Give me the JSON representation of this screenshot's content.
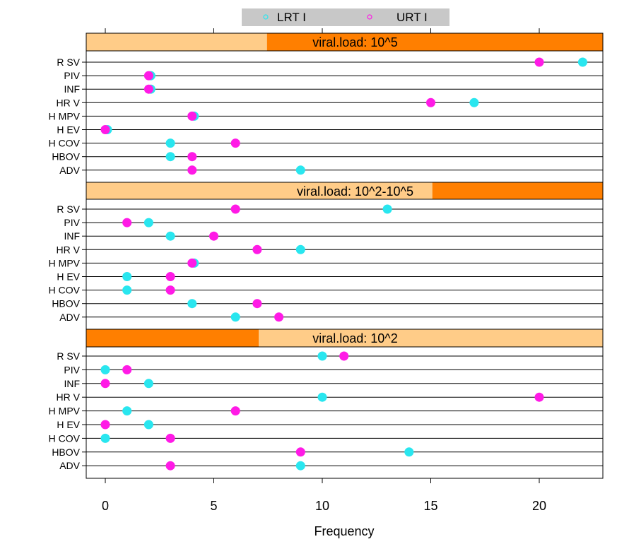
{
  "chart_data": {
    "type": "scatter",
    "title": "",
    "xlabel": "Frequency",
    "ylabel": "",
    "xlim": [
      -0.9,
      23
    ],
    "x_ticks": [
      0,
      5,
      10,
      15,
      20
    ],
    "grid": true,
    "legend_position": "top-center",
    "categories": [
      "RSV",
      "PIV",
      "INF",
      "HRV",
      "HMPV",
      "HEV",
      "HCOV",
      "HBOV",
      "ADV"
    ],
    "category_labels": [
      "R SV",
      "PIV",
      "INF",
      "HR V",
      "H MPV",
      "H EV",
      "H COV",
      "HBOV",
      "ADV"
    ],
    "series": [
      {
        "name": "LRTI",
        "legend_label": "LRT I",
        "color": "#29e6ef"
      },
      {
        "name": "URTI",
        "legend_label": "URT I",
        "color": "#ff1ae6"
      }
    ],
    "panels": [
      {
        "strip_label": "viral.load: 10^5",
        "strip_fill": 0.65,
        "values": {
          "LRTI": [
            22,
            2,
            2,
            17,
            4,
            0,
            3,
            3,
            9
          ],
          "URTI": [
            20,
            2,
            2,
            15,
            4,
            0,
            6,
            4,
            4
          ]
        }
      },
      {
        "strip_label": "viral.load: 10^2-10^5",
        "strip_fill": 0.33,
        "values": {
          "LRTI": [
            13,
            2,
            3,
            9,
            4,
            1,
            1,
            4,
            6
          ],
          "URTI": [
            6,
            1,
            5,
            7,
            4,
            3,
            3,
            7,
            8
          ]
        }
      },
      {
        "strip_label": "viral.load: 10^2",
        "strip_fill": 0.0,
        "values": {
          "LRTI": [
            10,
            0,
            2,
            10,
            1,
            2,
            0,
            14,
            9
          ],
          "URTI": [
            11,
            1,
            0,
            20,
            6,
            0,
            3,
            9,
            3
          ]
        }
      }
    ]
  },
  "colors": {
    "strip_light": "#ffcc88",
    "strip_dark": "#ff7f00",
    "legend_bg": "#c8c8c8",
    "gridline": "#000000"
  }
}
